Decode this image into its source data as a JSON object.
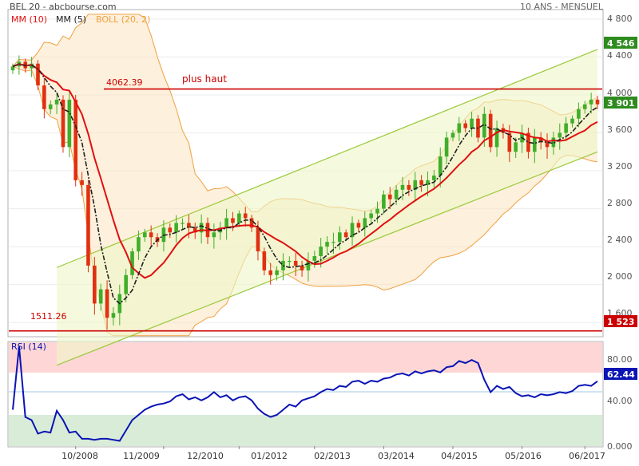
{
  "header": {
    "source": "BEL 20 - abcbourse.com",
    "period": "10 ANS - MENSUEL"
  },
  "legend": [
    {
      "label": "MM (10)",
      "color": "#e01010"
    },
    {
      "label": "MM (5)",
      "color": "#202020"
    },
    {
      "label": "BOLL (20, 2)",
      "color": "#f0a040"
    }
  ],
  "colors": {
    "up": "#3fae2a",
    "down": "#e03010",
    "mm10": "#e01010",
    "mm5": "#202020",
    "boll": "#f0a040",
    "channel": "#9bc93a",
    "level": "#cc0000",
    "rsi": "#0a14b4",
    "rsi_overbought": "#ffd6d6",
    "rsi_oversold": "#d8ecd8"
  },
  "annotations": {
    "high_value": "4062.39",
    "high_label": "plus haut",
    "low_value": "1511.26"
  },
  "price_axis": {
    "ticks": [
      "4 800",
      "4 400",
      "4 000",
      "3 600",
      "3 200",
      "2 800",
      "2 400",
      "2 000",
      "1 600"
    ],
    "badge_high": "4 546",
    "badge_last": "3 901",
    "badge_low": "1 523"
  },
  "rsi_panel": {
    "title": "RSI (14)",
    "ticks": [
      "80.00",
      "40.00",
      "0.000"
    ],
    "badge_last": "62.44"
  },
  "x_axis": {
    "ticks": [
      "10/2008",
      "11/2009",
      "12/2010",
      "01/2012",
      "02/2013",
      "03/2014",
      "04/2015",
      "05/2016",
      "06/2017"
    ]
  },
  "chart_data": [
    {
      "type": "candlestick",
      "title": "BEL 20",
      "ylim": [
        1450,
        4900
      ],
      "x_ticks": [
        "10/2008",
        "11/2009",
        "12/2010",
        "01/2012",
        "02/2013",
        "03/2014",
        "04/2015",
        "05/2016",
        "06/2017"
      ],
      "closes": [
        4300,
        4350,
        4280,
        4330,
        4100,
        3850,
        3900,
        3950,
        3450,
        3950,
        3100,
        3050,
        2200,
        1800,
        1950,
        1650,
        1700,
        1900,
        2100,
        2350,
        2500,
        2550,
        2500,
        2450,
        2600,
        2550,
        2650,
        2650,
        2600,
        2550,
        2650,
        2500,
        2550,
        2600,
        2700,
        2650,
        2750,
        2700,
        2600,
        2350,
        2150,
        2100,
        2150,
        2250,
        2250,
        2200,
        2150,
        2250,
        2300,
        2400,
        2450,
        2450,
        2550,
        2500,
        2650,
        2600,
        2700,
        2750,
        2800,
        2950,
        2900,
        3000,
        3050,
        3000,
        3100,
        3050,
        3100,
        3150,
        3350,
        3550,
        3600,
        3700,
        3650,
        3750,
        3550,
        3800,
        3450,
        3650,
        3600,
        3400,
        3500,
        3600,
        3400,
        3550,
        3500,
        3450,
        3550,
        3600,
        3700,
        3750,
        3850,
        3900,
        3950,
        3901
      ],
      "series": [
        {
          "name": "MM (10)"
        },
        {
          "name": "MM (5)"
        },
        {
          "name": "BOLL (20, 2)"
        }
      ],
      "levels": [
        {
          "value": 4062.39,
          "label": "plus haut"
        },
        {
          "value": 1511.26
        }
      ],
      "badges": [
        4546,
        3901,
        1523
      ]
    },
    {
      "type": "line",
      "title": "RSI (14)",
      "ylim": [
        0,
        100
      ],
      "zones": [
        70,
        30
      ],
      "series": [
        {
          "name": "RSI (14)",
          "values": [
            35,
            96,
            28,
            25,
            12,
            14,
            13,
            34,
            25,
            13,
            14,
            7,
            7,
            6,
            7,
            7,
            6,
            5,
            15,
            25,
            30,
            35,
            38,
            40,
            41,
            43,
            48,
            50,
            45,
            47,
            44,
            47,
            52,
            47,
            49,
            44,
            47,
            48,
            44,
            36,
            31,
            28,
            30,
            35,
            40,
            38,
            44,
            46,
            48,
            52,
            55,
            54,
            58,
            57,
            62,
            63,
            60,
            63,
            62,
            65,
            66,
            69,
            70,
            68,
            72,
            70,
            72,
            73,
            71,
            76,
            77,
            82,
            80,
            83,
            80,
            64,
            52,
            58,
            55,
            57,
            51,
            48,
            49,
            47,
            50,
            49,
            50,
            52,
            51,
            53,
            58,
            59,
            58,
            62.44
          ]
        }
      ],
      "last": 62.44
    }
  ]
}
